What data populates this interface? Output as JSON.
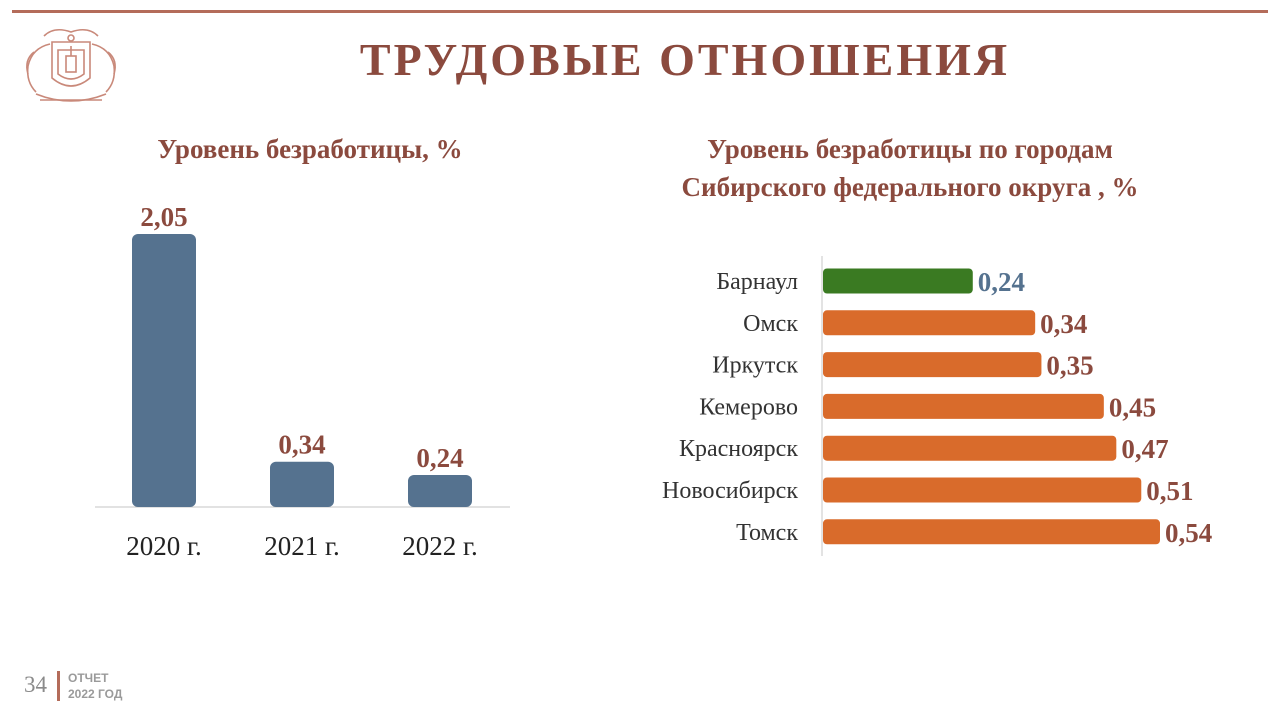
{
  "slide": {
    "title": "ТРУДОВЫЕ ОТНОШЕНИЯ",
    "page_number": "34",
    "footer_label": "ОТЧЕТ\n2022 ГОД",
    "emblem_icon": "city-coat-of-arms-icon"
  },
  "colors": {
    "title": "#8b4a3e",
    "accent_rule": "#b46c5a",
    "bar_left": "#55728f",
    "bar_highlight": "#3a7a22",
    "bar_other": "#d96b2b",
    "label_highlight": "#55728f"
  },
  "chart_data": [
    {
      "type": "bar",
      "title": "Уровень безработицы, %",
      "categories": [
        "2020 г.",
        "2021 г.",
        "2022 г."
      ],
      "values": [
        2.05,
        0.34,
        0.24
      ],
      "value_labels": [
        "2,05",
        "0,34",
        "0,24"
      ],
      "ylim": [
        0,
        2.05
      ],
      "grid": false,
      "legend": "none"
    },
    {
      "type": "bar",
      "orientation": "horizontal",
      "title": "Уровень безработицы по городам\nСибирского федерального округа , %",
      "categories": [
        "Барнаул",
        "Омск",
        "Иркутск",
        "Кемерово",
        "Красноярск",
        "Новосибирск",
        "Томск"
      ],
      "values": [
        0.24,
        0.34,
        0.35,
        0.45,
        0.47,
        0.51,
        0.54
      ],
      "value_labels": [
        "0,24",
        "0,34",
        "0,35",
        "0,45",
        "0,47",
        "0,51",
        "0,54"
      ],
      "highlight_category": "Барнаул",
      "xlim": [
        0,
        0.54
      ],
      "grid": false,
      "legend": "none"
    }
  ]
}
